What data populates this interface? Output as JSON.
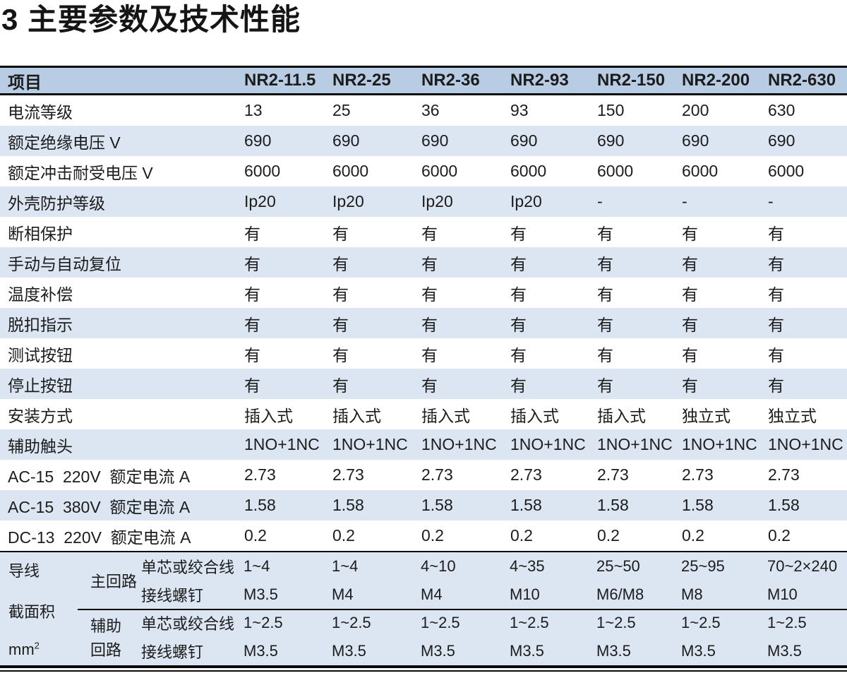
{
  "title": "3 主要参数及技术性能",
  "colors": {
    "header_bg": "#b8cce4",
    "row_stripe_bg": "#dce6f2",
    "border": "#0a0a0a",
    "text": "#1c1c1c"
  },
  "table": {
    "header": {
      "item_label": "项目",
      "models": [
        "NR2-11.5",
        "NR2-25",
        "NR2-36",
        "NR2-93",
        "NR2-150",
        "NR2-200",
        "NR2-630"
      ]
    },
    "rows": [
      {
        "label": "电流等级",
        "values": [
          "13",
          "25",
          "36",
          "93",
          "150",
          "200",
          "630"
        ]
      },
      {
        "label": "额定绝缘电压 V",
        "values": [
          "690",
          "690",
          "690",
          "690",
          "690",
          "690",
          "690"
        ]
      },
      {
        "label": "额定冲击耐受电压 V",
        "values": [
          "6000",
          "6000",
          "6000",
          "6000",
          "6000",
          "6000",
          "6000"
        ]
      },
      {
        "label": "外壳防护等级",
        "values": [
          "Ip20",
          "Ip20",
          "Ip20",
          "Ip20",
          "-",
          "-",
          "-"
        ]
      },
      {
        "label": "断相保护",
        "values": [
          "有",
          "有",
          "有",
          "有",
          "有",
          "有",
          "有"
        ]
      },
      {
        "label": "手动与自动复位",
        "values": [
          "有",
          "有",
          "有",
          "有",
          "有",
          "有",
          "有"
        ]
      },
      {
        "label": "温度补偿",
        "values": [
          "有",
          "有",
          "有",
          "有",
          "有",
          "有",
          "有"
        ]
      },
      {
        "label": "脱扣指示",
        "values": [
          "有",
          "有",
          "有",
          "有",
          "有",
          "有",
          "有"
        ]
      },
      {
        "label": "测试按钮",
        "values": [
          "有",
          "有",
          "有",
          "有",
          "有",
          "有",
          "有"
        ]
      },
      {
        "label": "停止按钮",
        "values": [
          "有",
          "有",
          "有",
          "有",
          "有",
          "有",
          "有"
        ]
      },
      {
        "label": "安装方式",
        "values": [
          "插入式",
          "插入式",
          "插入式",
          "插入式",
          "插入式",
          "独立式",
          "独立式"
        ]
      },
      {
        "label": "辅助触头",
        "values": [
          "1NO+1NC",
          "1NO+1NC",
          "1NO+1NC",
          "1NO+1NC",
          "1NO+1NC",
          "1NO+1NC",
          "1NO+1NC"
        ]
      },
      {
        "label": "AC-15  220V  额定电流 A",
        "values": [
          "2.73",
          "2.73",
          "2.73",
          "2.73",
          "2.73",
          "2.73",
          "2.73"
        ]
      },
      {
        "label": "AC-15  380V  额定电流 A",
        "values": [
          "1.58",
          "1.58",
          "1.58",
          "1.58",
          "1.58",
          "1.58",
          "1.58"
        ]
      },
      {
        "label": "DC-13  220V  额定电流 A",
        "values": [
          "0.2",
          "0.2",
          "0.2",
          "0.2",
          "0.2",
          "0.2",
          "0.2"
        ]
      }
    ],
    "wire_section": {
      "group_label": {
        "line1": "导线",
        "line2": "截面积",
        "unit_base": "mm",
        "unit_sup": "2"
      },
      "circuits": [
        {
          "label_lines": [
            "主回路"
          ],
          "rows": [
            {
              "type": "单芯或绞合线",
              "values": [
                "1~4",
                "1~4",
                "4~10",
                "4~35",
                "25~50",
                "25~95",
                "70~2×240"
              ]
            },
            {
              "type": "接线螺钉",
              "values": [
                "M3.5",
                "M4",
                "M4",
                "M10",
                "M6/M8",
                "M8",
                "M10"
              ]
            }
          ]
        },
        {
          "label_lines": [
            "辅助",
            "回路"
          ],
          "rows": [
            {
              "type": "单芯或绞合线",
              "values": [
                "1~2.5",
                "1~2.5",
                "1~2.5",
                "1~2.5",
                "1~2.5",
                "1~2.5",
                "1~2.5"
              ]
            },
            {
              "type": "接线螺钉",
              "values": [
                "M3.5",
                "M3.5",
                "M3.5",
                "M3.5",
                "M3.5",
                "M3.5",
                "M3.5"
              ]
            }
          ]
        }
      ]
    }
  }
}
